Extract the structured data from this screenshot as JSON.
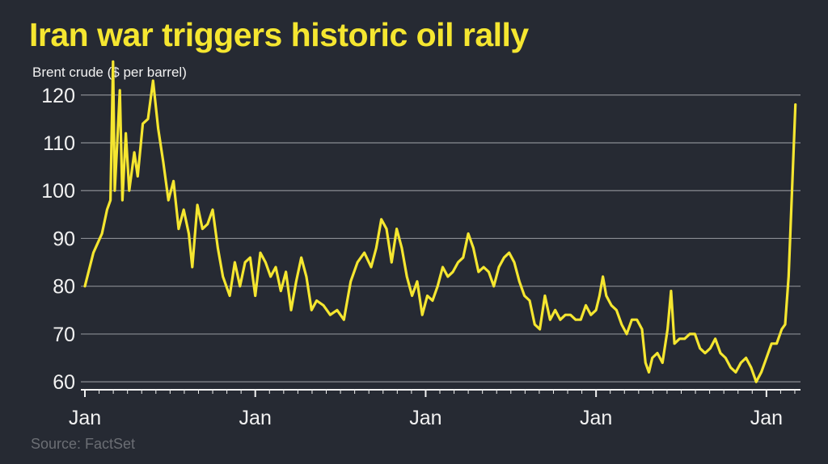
{
  "title": "Iran war triggers historic oil rally",
  "subtitle": "Brent crude ($ per barrel)",
  "source": "Source: FactSet",
  "colors": {
    "background": "#262a33",
    "title": "#f5e630",
    "line": "#f5e630",
    "grid": "#8a8d93",
    "text": "#f2f2f2",
    "source": "#6b6e74"
  },
  "chart_data": {
    "type": "line",
    "title": "Iran war triggers historic oil rally",
    "subtitle": "Brent crude ($ per barrel)",
    "xlabel": "",
    "ylabel": "",
    "ylim": [
      58,
      123
    ],
    "yticks": [
      60,
      70,
      80,
      90,
      100,
      110,
      120
    ],
    "xlim": [
      0,
      4.2
    ],
    "xticks": [
      {
        "value": 0,
        "label": "Jan"
      },
      {
        "value": 1,
        "label": "Jan"
      },
      {
        "value": 2,
        "label": "Jan"
      },
      {
        "value": 3,
        "label": "Jan"
      },
      {
        "value": 4,
        "label": "Jan"
      }
    ],
    "grid": "horizontal",
    "series": [
      {
        "points": [
          [
            0.0,
            80
          ],
          [
            0.05,
            87
          ],
          [
            0.1,
            91
          ],
          [
            0.13,
            96
          ],
          [
            0.15,
            98
          ],
          [
            0.165,
            127
          ],
          [
            0.175,
            100
          ],
          [
            0.19,
            110
          ],
          [
            0.205,
            121
          ],
          [
            0.22,
            98
          ],
          [
            0.24,
            112
          ],
          [
            0.26,
            100
          ],
          [
            0.29,
            108
          ],
          [
            0.31,
            103
          ],
          [
            0.34,
            114
          ],
          [
            0.37,
            115
          ],
          [
            0.4,
            123
          ],
          [
            0.43,
            113
          ],
          [
            0.46,
            106
          ],
          [
            0.49,
            98
          ],
          [
            0.52,
            102
          ],
          [
            0.55,
            92
          ],
          [
            0.58,
            96
          ],
          [
            0.61,
            91
          ],
          [
            0.63,
            84
          ],
          [
            0.66,
            97
          ],
          [
            0.69,
            92
          ],
          [
            0.72,
            93
          ],
          [
            0.75,
            96
          ],
          [
            0.78,
            88
          ],
          [
            0.81,
            82
          ],
          [
            0.85,
            78
          ],
          [
            0.88,
            85
          ],
          [
            0.91,
            80
          ],
          [
            0.94,
            85
          ],
          [
            0.97,
            86
          ],
          [
            1.0,
            78
          ],
          [
            1.03,
            87
          ],
          [
            1.06,
            85
          ],
          [
            1.09,
            82
          ],
          [
            1.12,
            84
          ],
          [
            1.15,
            79
          ],
          [
            1.18,
            83
          ],
          [
            1.21,
            75
          ],
          [
            1.24,
            81
          ],
          [
            1.27,
            86
          ],
          [
            1.3,
            82
          ],
          [
            1.33,
            75
          ],
          [
            1.36,
            77
          ],
          [
            1.4,
            76
          ],
          [
            1.44,
            74
          ],
          [
            1.48,
            75
          ],
          [
            1.52,
            73
          ],
          [
            1.56,
            81
          ],
          [
            1.6,
            85
          ],
          [
            1.64,
            87
          ],
          [
            1.68,
            84
          ],
          [
            1.71,
            88
          ],
          [
            1.74,
            94
          ],
          [
            1.77,
            92
          ],
          [
            1.8,
            85
          ],
          [
            1.83,
            92
          ],
          [
            1.86,
            88
          ],
          [
            1.89,
            82
          ],
          [
            1.92,
            78
          ],
          [
            1.95,
            81
          ],
          [
            1.98,
            74
          ],
          [
            2.01,
            78
          ],
          [
            2.04,
            77
          ],
          [
            2.07,
            80
          ],
          [
            2.1,
            84
          ],
          [
            2.13,
            82
          ],
          [
            2.16,
            83
          ],
          [
            2.19,
            85
          ],
          [
            2.22,
            86
          ],
          [
            2.25,
            91
          ],
          [
            2.28,
            88
          ],
          [
            2.31,
            83
          ],
          [
            2.34,
            84
          ],
          [
            2.37,
            83
          ],
          [
            2.4,
            80
          ],
          [
            2.43,
            84
          ],
          [
            2.46,
            86
          ],
          [
            2.49,
            87
          ],
          [
            2.52,
            85
          ],
          [
            2.55,
            81
          ],
          [
            2.58,
            78
          ],
          [
            2.61,
            77
          ],
          [
            2.64,
            72
          ],
          [
            2.67,
            71
          ],
          [
            2.7,
            78
          ],
          [
            2.73,
            73
          ],
          [
            2.76,
            75
          ],
          [
            2.79,
            73
          ],
          [
            2.82,
            74
          ],
          [
            2.85,
            74
          ],
          [
            2.88,
            73
          ],
          [
            2.91,
            73
          ],
          [
            2.94,
            76
          ],
          [
            2.97,
            74
          ],
          [
            3.0,
            75
          ],
          [
            3.02,
            78
          ],
          [
            3.04,
            82
          ],
          [
            3.06,
            78
          ],
          [
            3.09,
            76
          ],
          [
            3.12,
            75
          ],
          [
            3.15,
            72
          ],
          [
            3.18,
            70
          ],
          [
            3.21,
            73
          ],
          [
            3.24,
            73
          ],
          [
            3.27,
            71
          ],
          [
            3.29,
            64
          ],
          [
            3.31,
            62
          ],
          [
            3.33,
            65
          ],
          [
            3.36,
            66
          ],
          [
            3.39,
            64
          ],
          [
            3.42,
            71
          ],
          [
            3.44,
            79
          ],
          [
            3.46,
            68
          ],
          [
            3.49,
            69
          ],
          [
            3.52,
            69
          ],
          [
            3.55,
            70
          ],
          [
            3.58,
            70
          ],
          [
            3.61,
            67
          ],
          [
            3.64,
            66
          ],
          [
            3.67,
            67
          ],
          [
            3.7,
            69
          ],
          [
            3.73,
            66
          ],
          [
            3.76,
            65
          ],
          [
            3.79,
            63
          ],
          [
            3.82,
            62
          ],
          [
            3.85,
            64
          ],
          [
            3.88,
            65
          ],
          [
            3.91,
            63
          ],
          [
            3.94,
            60
          ],
          [
            3.97,
            62
          ],
          [
            4.0,
            65
          ],
          [
            4.03,
            68
          ],
          [
            4.06,
            68
          ],
          [
            4.09,
            71
          ],
          [
            4.11,
            72
          ],
          [
            4.13,
            82
          ],
          [
            4.15,
            100
          ],
          [
            4.17,
            118
          ]
        ]
      }
    ]
  }
}
